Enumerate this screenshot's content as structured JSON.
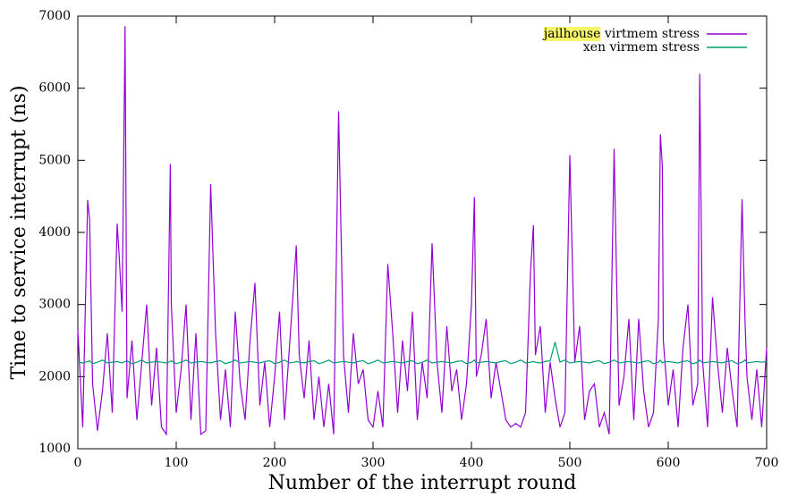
{
  "chart_data": {
    "type": "line",
    "xlabel": "Number of the interrupt round",
    "ylabel": "Time to service interrupt (ns)",
    "x": [
      0,
      5,
      10,
      12,
      15,
      20,
      25,
      30,
      35,
      40,
      42,
      45,
      48,
      50,
      55,
      60,
      65,
      70,
      75,
      80,
      85,
      90,
      94,
      95,
      100,
      105,
      110,
      115,
      120,
      125,
      130,
      135,
      140,
      145,
      150,
      155,
      160,
      165,
      170,
      175,
      180,
      185,
      190,
      195,
      200,
      205,
      210,
      215,
      220,
      222,
      225,
      230,
      235,
      240,
      245,
      250,
      255,
      260,
      265,
      270,
      275,
      280,
      285,
      290,
      295,
      300,
      305,
      310,
      315,
      320,
      325,
      330,
      335,
      340,
      345,
      350,
      355,
      360,
      365,
      370,
      375,
      380,
      385,
      390,
      395,
      400,
      403,
      405,
      410,
      415,
      420,
      425,
      430,
      435,
      440,
      445,
      450,
      455,
      460,
      463,
      465,
      470,
      475,
      480,
      485,
      490,
      495,
      500,
      505,
      510,
      515,
      520,
      525,
      530,
      535,
      540,
      545,
      550,
      555,
      560,
      565,
      570,
      575,
      580,
      585,
      590,
      592,
      594,
      595,
      600,
      605,
      610,
      615,
      620,
      625,
      630,
      632,
      635,
      640,
      645,
      650,
      655,
      660,
      665,
      670,
      675,
      678,
      680,
      685,
      690,
      695,
      700
    ],
    "series": [
      {
        "name": "jailhouse virtmem stress",
        "color": "#9400d3",
        "values": [
          2650,
          1300,
          4450,
          4180,
          1900,
          1250,
          1800,
          2600,
          1500,
          4120,
          3680,
          2900,
          6860,
          1700,
          2500,
          1400,
          2200,
          3000,
          1600,
          2400,
          1300,
          1200,
          4950,
          3000,
          1500,
          2100,
          3000,
          1400,
          2600,
          1200,
          1250,
          4670,
          2600,
          1400,
          2100,
          1300,
          2900,
          1900,
          1400,
          2500,
          3300,
          1600,
          2200,
          1300,
          2000,
          2900,
          1400,
          2400,
          3400,
          3820,
          2300,
          1700,
          2500,
          1400,
          2000,
          1300,
          1900,
          1200,
          5680,
          2300,
          1500,
          2600,
          1900,
          2100,
          1400,
          1300,
          1800,
          1300,
          3560,
          2600,
          1500,
          2500,
          1800,
          2900,
          1400,
          2200,
          1700,
          3850,
          2200,
          1500,
          2700,
          1800,
          2100,
          1400,
          1900,
          3000,
          4490,
          2000,
          2300,
          2800,
          1700,
          2200,
          1800,
          1400,
          1300,
          1350,
          1300,
          1500,
          3450,
          4100,
          2300,
          2700,
          1500,
          2200,
          1700,
          1300,
          1500,
          5070,
          2200,
          2700,
          1400,
          1800,
          1900,
          1300,
          1500,
          1200,
          5160,
          1600,
          2000,
          2800,
          1400,
          2800,
          1800,
          1300,
          1500,
          2800,
          5360,
          4920,
          2500,
          1600,
          2100,
          1300,
          2400,
          3000,
          1600,
          1900,
          6200,
          2200,
          1300,
          3100,
          2200,
          1500,
          2400,
          1800,
          1300,
          4460,
          2800,
          2000,
          1400,
          2100,
          1300,
          2400
        ]
      },
      {
        "name": "xen virmem stress",
        "color": "#009e73",
        "values": [
          2200,
          2190,
          2210,
          2220,
          2180,
          2200,
          2230,
          2190,
          2200,
          2210,
          2200,
          2190,
          2210,
          2220,
          2180,
          2200,
          2230,
          2190,
          2200,
          2210,
          2200,
          2190,
          2210,
          2220,
          2180,
          2200,
          2230,
          2190,
          2200,
          2210,
          2200,
          2190,
          2210,
          2220,
          2180,
          2200,
          2230,
          2190,
          2200,
          2210,
          2200,
          2190,
          2210,
          2220,
          2180,
          2200,
          2230,
          2190,
          2200,
          2210,
          2200,
          2190,
          2210,
          2220,
          2180,
          2200,
          2230,
          2190,
          2200,
          2210,
          2200,
          2190,
          2210,
          2220,
          2180,
          2200,
          2230,
          2190,
          2200,
          2210,
          2200,
          2190,
          2210,
          2220,
          2180,
          2200,
          2230,
          2190,
          2200,
          2210,
          2200,
          2190,
          2210,
          2220,
          2180,
          2200,
          2230,
          2190,
          2200,
          2210,
          2200,
          2190,
          2210,
          2220,
          2180,
          2200,
          2230,
          2190,
          2200,
          2210,
          2200,
          2190,
          2210,
          2220,
          2480,
          2200,
          2230,
          2190,
          2200,
          2210,
          2200,
          2190,
          2210,
          2220,
          2180,
          2200,
          2230,
          2190,
          2200,
          2210,
          2200,
          2190,
          2210,
          2220,
          2180,
          2200,
          2230,
          2190,
          2200,
          2210,
          2200,
          2190,
          2210,
          2220,
          2180,
          2200,
          2230,
          2190,
          2200,
          2210,
          2200,
          2190,
          2210,
          2220,
          2180,
          2200,
          2230,
          2190,
          2200,
          2210,
          2200,
          2210
        ]
      }
    ],
    "xlim": [
      0,
      700
    ],
    "xticks": [
      0,
      100,
      200,
      300,
      400,
      500,
      600,
      700
    ],
    "ylim": [
      1000,
      7000
    ],
    "yticks": [
      1000,
      2000,
      3000,
      4000,
      5000,
      6000,
      7000
    ],
    "legend": "upper right",
    "highlight": "jailhouse"
  }
}
